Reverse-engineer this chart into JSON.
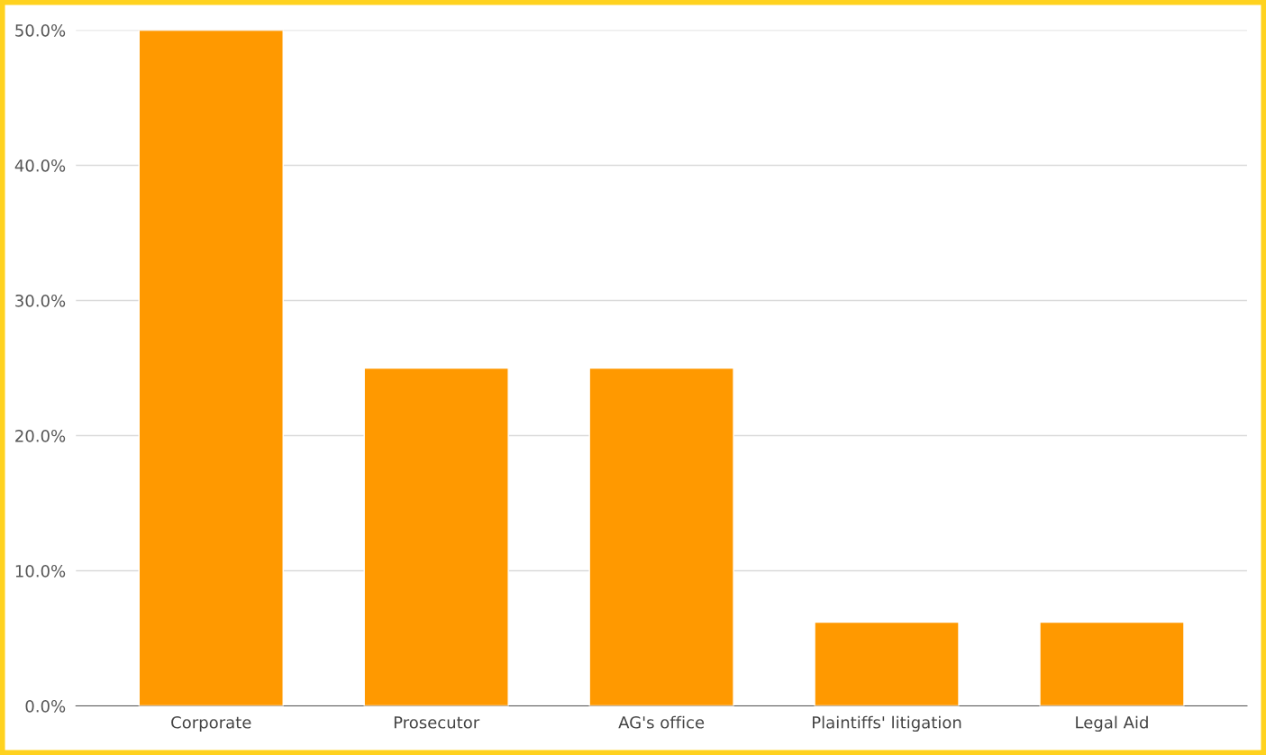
{
  "chart_data": {
    "type": "bar",
    "categories": [
      "Corporate",
      "Prosecutor",
      "AG's office",
      "Plaintiffs' litigation",
      "Legal Aid"
    ],
    "values": [
      50,
      25,
      25,
      6.2,
      6.2
    ],
    "color": "#ff9900",
    "ylim": [
      0,
      50
    ],
    "yticks": [
      {
        "value": 0,
        "label": "0.0%"
      },
      {
        "value": 10,
        "label": "10.0%"
      },
      {
        "value": 20,
        "label": "20.0%"
      },
      {
        "value": 30,
        "label": "30.0%"
      },
      {
        "value": 40,
        "label": "40.0%"
      },
      {
        "value": 50,
        "label": "50.0%"
      }
    ],
    "grid": "y"
  }
}
